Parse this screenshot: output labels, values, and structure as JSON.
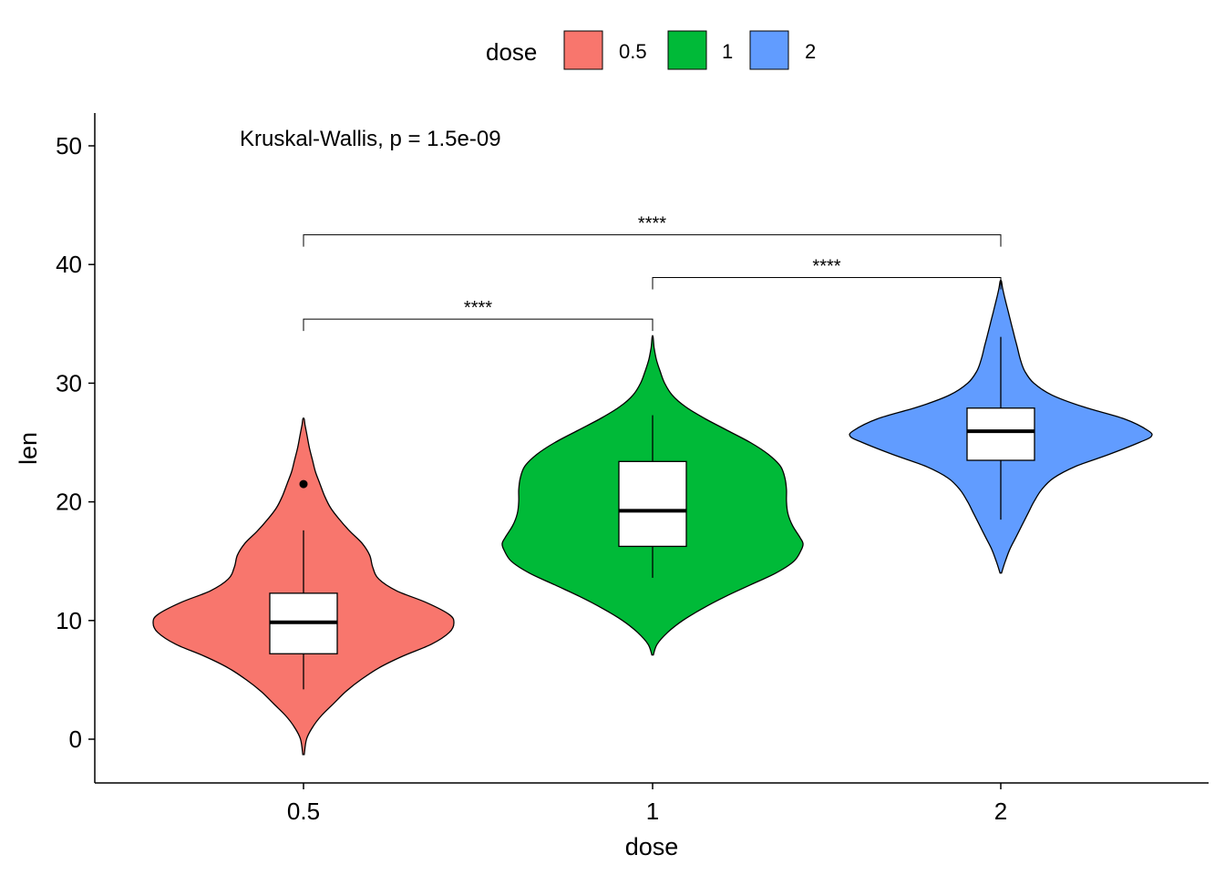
{
  "legend": {
    "title": "dose",
    "items": [
      {
        "label": "0.5",
        "color": "#F8766D"
      },
      {
        "label": "1",
        "color": "#00BA38"
      },
      {
        "label": "2",
        "color": "#619CFF"
      }
    ]
  },
  "chart_data": {
    "type": "violin",
    "xlabel": "dose",
    "ylabel": "len",
    "ylim": [
      -3.7,
      52.8
    ],
    "yticks": [
      0,
      10,
      20,
      30,
      40,
      50
    ],
    "categories": [
      "0.5",
      "1",
      "2"
    ],
    "legend_position": "top",
    "grid": false,
    "annotation": "Kruskal-Wallis, p = 1.5e-09",
    "groups": [
      {
        "name": "0.5",
        "color": "#F8766D",
        "box": {
          "q1": 7.2,
          "median": 9.85,
          "q3": 12.3,
          "whisker_low": 4.2,
          "whisker_high": 17.6
        },
        "outliers": [
          21.5
        ],
        "violin_range": [
          -1.3,
          27.0
        ],
        "density": [
          [
            -1.3,
            0.005
          ],
          [
            0,
            0.02
          ],
          [
            1,
            0.06
          ],
          [
            2,
            0.12
          ],
          [
            3,
            0.2
          ],
          [
            4,
            0.28
          ],
          [
            5,
            0.38
          ],
          [
            6,
            0.5
          ],
          [
            7,
            0.66
          ],
          [
            8,
            0.85
          ],
          [
            9,
            0.97
          ],
          [
            9.8,
            1.0
          ],
          [
            10.5,
            0.97
          ],
          [
            11.5,
            0.82
          ],
          [
            12.5,
            0.62
          ],
          [
            13.5,
            0.5
          ],
          [
            14.5,
            0.46
          ],
          [
            15.5,
            0.44
          ],
          [
            16.5,
            0.39
          ],
          [
            17.5,
            0.31
          ],
          [
            18.5,
            0.24
          ],
          [
            19.5,
            0.18
          ],
          [
            20.5,
            0.14
          ],
          [
            21.5,
            0.11
          ],
          [
            22.5,
            0.08
          ],
          [
            23.5,
            0.06
          ],
          [
            24.5,
            0.04
          ],
          [
            25.5,
            0.025
          ],
          [
            26.5,
            0.01
          ],
          [
            27.0,
            0.004
          ]
        ]
      },
      {
        "name": "1",
        "color": "#00BA38",
        "box": {
          "q1": 16.25,
          "median": 19.25,
          "q3": 23.4,
          "whisker_low": 13.6,
          "whisker_high": 27.3
        },
        "outliers": [],
        "violin_range": [
          7.1,
          33.9
        ],
        "density": [
          [
            7.1,
            0.005
          ],
          [
            8,
            0.03
          ],
          [
            9,
            0.1
          ],
          [
            10,
            0.2
          ],
          [
            11,
            0.33
          ],
          [
            12,
            0.48
          ],
          [
            13,
            0.65
          ],
          [
            14,
            0.82
          ],
          [
            15,
            0.94
          ],
          [
            16,
            0.99
          ],
          [
            16.5,
            1.0
          ],
          [
            17,
            0.98
          ],
          [
            18,
            0.93
          ],
          [
            19,
            0.9
          ],
          [
            20,
            0.89
          ],
          [
            21,
            0.89
          ],
          [
            22,
            0.88
          ],
          [
            23,
            0.85
          ],
          [
            24,
            0.77
          ],
          [
            25,
            0.65
          ],
          [
            26,
            0.5
          ],
          [
            27,
            0.35
          ],
          [
            28,
            0.22
          ],
          [
            29,
            0.13
          ],
          [
            30,
            0.08
          ],
          [
            31,
            0.05
          ],
          [
            32,
            0.025
          ],
          [
            33,
            0.01
          ],
          [
            33.9,
            0.003
          ]
        ]
      },
      {
        "name": "2",
        "color": "#619CFF",
        "box": {
          "q1": 23.5,
          "median": 25.95,
          "q3": 27.9,
          "whisker_low": 18.5,
          "whisker_high": 33.9
        },
        "outliers": [],
        "violin_range": [
          14.0,
          38.6
        ],
        "density": [
          [
            14,
            0.005
          ],
          [
            15,
            0.03
          ],
          [
            16,
            0.06
          ],
          [
            17,
            0.1
          ],
          [
            18,
            0.14
          ],
          [
            19,
            0.18
          ],
          [
            20,
            0.22
          ],
          [
            21,
            0.27
          ],
          [
            22,
            0.35
          ],
          [
            23,
            0.5
          ],
          [
            24,
            0.72
          ],
          [
            25,
            0.92
          ],
          [
            25.5,
            1.0
          ],
          [
            26,
            0.98
          ],
          [
            27,
            0.82
          ],
          [
            28,
            0.55
          ],
          [
            29,
            0.34
          ],
          [
            30,
            0.22
          ],
          [
            31,
            0.16
          ],
          [
            32,
            0.13
          ],
          [
            33,
            0.11
          ],
          [
            34,
            0.09
          ],
          [
            35,
            0.07
          ],
          [
            36,
            0.05
          ],
          [
            37,
            0.03
          ],
          [
            38,
            0.012
          ],
          [
            38.6,
            0.004
          ]
        ]
      }
    ],
    "comparisons": [
      {
        "from": "0.5",
        "to": "1",
        "y": 35.4,
        "label": "****"
      },
      {
        "from": "1",
        "to": "2",
        "y": 38.9,
        "label": "****"
      },
      {
        "from": "0.5",
        "to": "2",
        "y": 42.5,
        "label": "****"
      }
    ]
  }
}
